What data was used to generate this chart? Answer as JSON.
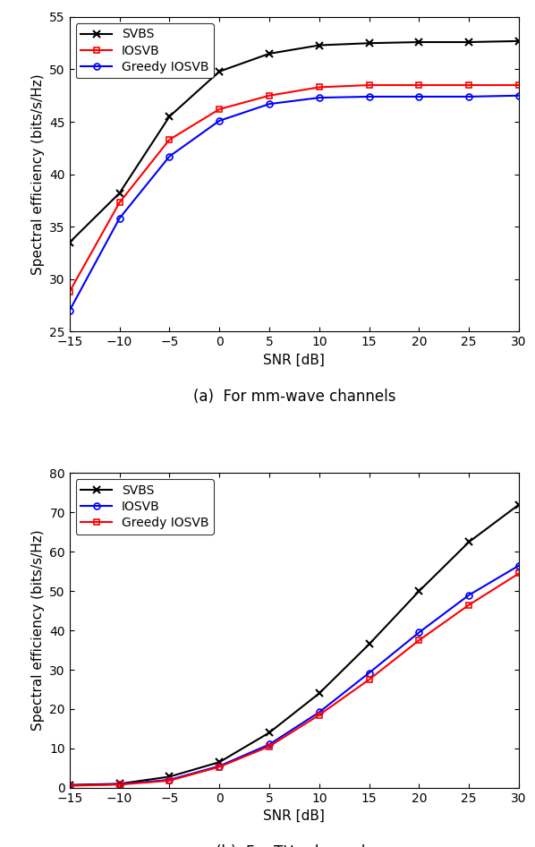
{
  "snr": [
    -15,
    -10,
    -5,
    0,
    5,
    10,
    15,
    20,
    25,
    30
  ],
  "mmwave_SVBS": [
    33.5,
    38.2,
    45.5,
    49.8,
    51.5,
    52.3,
    52.5,
    52.6,
    52.6,
    52.7
  ],
  "mmwave_IOSVB": [
    28.8,
    37.3,
    43.3,
    46.2,
    47.5,
    48.3,
    48.5,
    48.5,
    48.5,
    48.5
  ],
  "mmwave_GreedyIOSVB": [
    27.0,
    35.8,
    41.7,
    45.1,
    46.7,
    47.3,
    47.4,
    47.4,
    47.4,
    47.5
  ],
  "thz_SVBS": [
    0.7,
    1.0,
    2.8,
    6.5,
    14.0,
    24.0,
    36.5,
    50.0,
    62.5,
    72.0
  ],
  "thz_IOSVB": [
    0.6,
    0.9,
    2.0,
    5.5,
    11.0,
    19.2,
    29.2,
    39.5,
    49.0,
    56.5
  ],
  "thz_GreedyIOSVB": [
    0.5,
    0.8,
    1.8,
    5.3,
    10.5,
    18.5,
    27.5,
    37.5,
    46.5,
    54.5
  ],
  "mmwave_ylim": [
    25,
    55
  ],
  "mmwave_yticks": [
    25,
    30,
    35,
    40,
    45,
    50,
    55
  ],
  "thz_ylim": [
    0,
    80
  ],
  "thz_yticks": [
    0,
    10,
    20,
    30,
    40,
    50,
    60,
    70,
    80
  ],
  "xlabel": "SNR [dB]",
  "ylabel": "Spectral efficiency (bits/s/Hz)",
  "xticks": [
    -15,
    -10,
    -5,
    0,
    5,
    10,
    15,
    20,
    25,
    30
  ],
  "color_SVBS": "#000000",
  "color_IOSVB_mmwave": "#ff0000",
  "color_GreedyIOSVB_mmwave": "#0000ff",
  "color_IOSVB_thz": "#0000ff",
  "color_GreedyIOSVB_thz": "#ff0000",
  "label_SVBS": "SVBS",
  "label_IOSVB": "IOSVB",
  "label_GreedyIOSVB": "Greedy IOSVB",
  "caption_a": "(a)  For mm-wave channels",
  "caption_b": "(b)  For THz channels",
  "linewidth": 1.5,
  "markersize": 6
}
